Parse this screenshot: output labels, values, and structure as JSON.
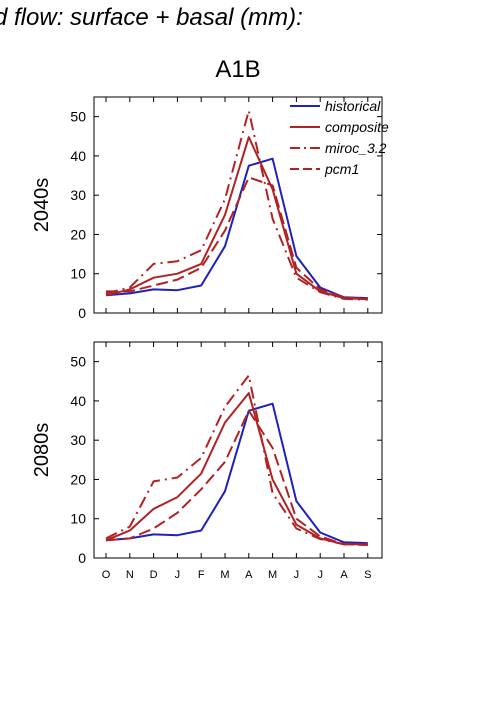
{
  "title": "d flow: surface + basal (mm):",
  "scenario": "A1B",
  "colors": {
    "historical": "#2020c0",
    "model": "#b22222"
  },
  "chart_data": [
    {
      "type": "line",
      "panel_label": "2040s",
      "categories": [
        "O",
        "N",
        "D",
        "J",
        "F",
        "M",
        "A",
        "M",
        "J",
        "J",
        "A",
        "S"
      ],
      "ylim": [
        0,
        55
      ],
      "yticks": [
        0,
        10,
        20,
        30,
        40,
        50
      ],
      "legend": "top-right",
      "series": [
        {
          "name": "historical",
          "style": "solid",
          "color": "#2020c0",
          "values": [
            4.5,
            5.0,
            6.0,
            5.8,
            7.0,
            17.0,
            37.5,
            39.3,
            14.5,
            6.5,
            4.0,
            3.8
          ]
        },
        {
          "name": "composite",
          "style": "solid",
          "color": "#b22222",
          "values": [
            4.5,
            6.0,
            9.0,
            10.0,
            12.5,
            25.0,
            44.8,
            31.5,
            10.0,
            5.5,
            3.8,
            3.5
          ]
        },
        {
          "name": "miroc_3.2",
          "style": "dashdot",
          "color": "#b22222",
          "values": [
            5.0,
            6.5,
            12.5,
            13.2,
            16.0,
            29.0,
            51.5,
            24.0,
            9.0,
            5.3,
            3.6,
            3.4
          ]
        },
        {
          "name": "pcm1",
          "style": "dashed",
          "color": "#b22222",
          "values": [
            5.5,
            5.5,
            7.0,
            8.5,
            11.5,
            21.0,
            34.5,
            32.5,
            11.5,
            6.0,
            4.0,
            3.6
          ]
        }
      ]
    },
    {
      "type": "line",
      "panel_label": "2080s",
      "categories": [
        "O",
        "N",
        "D",
        "J",
        "F",
        "M",
        "A",
        "M",
        "J",
        "J",
        "A",
        "S"
      ],
      "ylim": [
        0,
        55
      ],
      "yticks": [
        0,
        10,
        20,
        30,
        40,
        50
      ],
      "series": [
        {
          "name": "historical",
          "style": "solid",
          "color": "#2020c0",
          "values": [
            4.5,
            5.0,
            6.0,
            5.8,
            7.0,
            17.0,
            37.5,
            39.3,
            14.5,
            6.5,
            4.0,
            3.8
          ]
        },
        {
          "name": "composite",
          "style": "solid",
          "color": "#b22222",
          "values": [
            4.5,
            7.0,
            12.5,
            15.5,
            21.5,
            34.5,
            42.0,
            20.0,
            8.5,
            5.0,
            3.5,
            3.5
          ]
        },
        {
          "name": "miroc_3.2",
          "style": "dashdot",
          "color": "#b22222",
          "values": [
            5.0,
            8.0,
            19.5,
            20.5,
            25.5,
            38.5,
            46.5,
            16.5,
            7.5,
            4.8,
            3.5,
            3.3
          ]
        },
        {
          "name": "pcm1",
          "style": "dashed",
          "color": "#b22222",
          "values": [
            4.5,
            5.0,
            7.5,
            11.5,
            17.5,
            24.5,
            37.5,
            28.0,
            10.0,
            5.5,
            3.5,
            3.4
          ]
        }
      ]
    }
  ]
}
